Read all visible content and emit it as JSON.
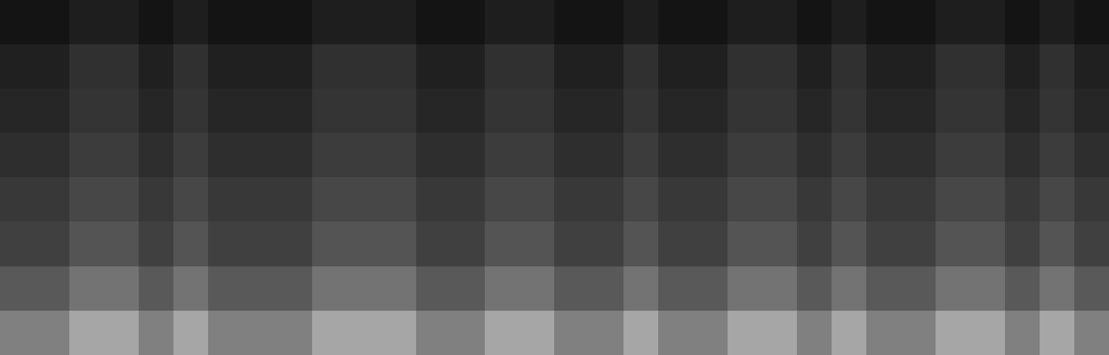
{
  "chart_data": {
    "type": "heatmap",
    "tick_labels": false,
    "color": "gray",
    "color_range": [
      0,
      100
    ],
    "cells": [
      [
        8,
        8,
        12,
        12,
        8,
        12,
        8,
        8,
        8,
        12,
        12,
        12,
        8,
        8,
        12,
        12,
        8,
        8,
        12,
        8,
        8,
        12,
        12,
        8,
        12,
        8,
        8,
        12,
        12,
        8,
        12,
        8
      ],
      [
        13,
        13,
        19,
        19,
        13,
        19,
        13,
        13,
        13,
        19,
        19,
        19,
        13,
        13,
        19,
        19,
        13,
        13,
        19,
        13,
        13,
        19,
        19,
        13,
        19,
        13,
        13,
        19,
        19,
        13,
        19,
        13
      ],
      [
        15,
        15,
        21,
        21,
        15,
        21,
        15,
        15,
        15,
        21,
        21,
        21,
        15,
        15,
        21,
        21,
        15,
        15,
        21,
        15,
        15,
        21,
        21,
        15,
        21,
        15,
        15,
        21,
        21,
        15,
        21,
        15
      ],
      [
        18,
        18,
        24,
        24,
        18,
        24,
        18,
        18,
        18,
        24,
        24,
        24,
        18,
        18,
        24,
        24,
        18,
        18,
        24,
        18,
        18,
        24,
        24,
        18,
        24,
        18,
        18,
        24,
        24,
        18,
        24,
        18
      ],
      [
        22,
        22,
        28,
        28,
        22,
        28,
        22,
        22,
        22,
        28,
        28,
        28,
        22,
        22,
        28,
        28,
        22,
        22,
        28,
        22,
        22,
        28,
        28,
        22,
        28,
        22,
        22,
        28,
        28,
        22,
        28,
        22
      ],
      [
        25,
        25,
        33,
        33,
        25,
        33,
        25,
        25,
        25,
        33,
        33,
        33,
        25,
        25,
        33,
        33,
        25,
        25,
        33,
        25,
        25,
        33,
        33,
        25,
        33,
        25,
        25,
        33,
        33,
        25,
        33,
        25
      ],
      [
        35,
        35,
        45,
        45,
        35,
        45,
        35,
        35,
        35,
        45,
        45,
        45,
        35,
        35,
        45,
        45,
        35,
        35,
        45,
        35,
        35,
        45,
        45,
        35,
        45,
        35,
        35,
        45,
        45,
        35,
        45,
        35
      ],
      [
        50,
        50,
        65,
        65,
        50,
        65,
        50,
        50,
        50,
        65,
        65,
        65,
        50,
        50,
        65,
        65,
        50,
        50,
        65,
        50,
        50,
        65,
        65,
        50,
        65,
        50,
        50,
        65,
        65,
        50,
        65,
        50
      ]
    ]
  }
}
